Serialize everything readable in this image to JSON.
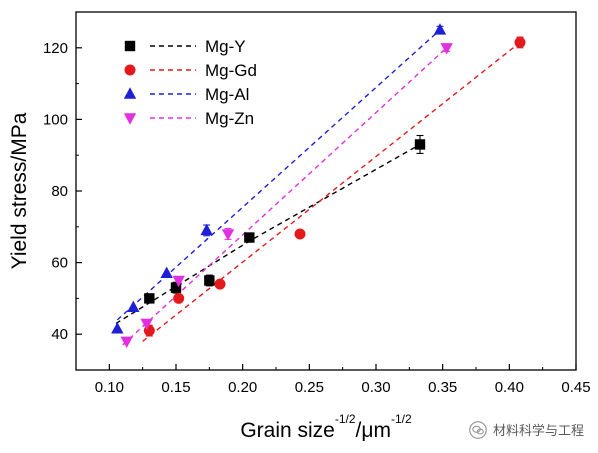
{
  "chart_data": {
    "type": "scatter",
    "xlabel_main": "Grain size",
    "xlabel_exp1": "-1/2",
    "xlabel_unit": "/μm",
    "xlabel_exp2": "-1/2",
    "ylabel": "Yield stress/MPa",
    "xlim": [
      0.075,
      0.45
    ],
    "ylim": [
      30,
      130
    ],
    "xticks": [
      0.1,
      0.15,
      0.2,
      0.25,
      0.3,
      0.35,
      0.4,
      0.45
    ],
    "xtick_labels": [
      "0.10",
      "0.15",
      "0.20",
      "0.25",
      "0.30",
      "0.35",
      "0.40",
      "0.45"
    ],
    "yticks": [
      40,
      60,
      80,
      100,
      120
    ],
    "ytick_labels": [
      "40",
      "60",
      "80",
      "100",
      "120"
    ],
    "grid": false,
    "legend_position": "top-left",
    "series": [
      {
        "name": "Mg-Y",
        "color": "#000000",
        "marker": "square",
        "x": [
          0.13,
          0.15,
          0.175,
          0.205,
          0.333
        ],
        "y": [
          50,
          53,
          55,
          67,
          93
        ],
        "err": [
          0,
          1.5,
          1.5,
          0,
          2.5
        ],
        "fit": [
          [
            0.105,
            43
          ],
          [
            0.205,
            66
          ],
          [
            0.333,
            93
          ]
        ]
      },
      {
        "name": "Mg-Gd",
        "color": "#e31a1c",
        "marker": "circle",
        "x": [
          0.13,
          0.152,
          0.183,
          0.243,
          0.408
        ],
        "y": [
          41,
          50,
          54,
          68,
          121.5
        ],
        "err": [
          1.5,
          1,
          1,
          0,
          1.5
        ],
        "fit": [
          [
            0.125,
            38
          ],
          [
            0.408,
            121.5
          ]
        ]
      },
      {
        "name": "Mg-Al",
        "color": "#1f1fd6",
        "marker": "triangle-up",
        "x": [
          0.106,
          0.118,
          0.143,
          0.173,
          0.348
        ],
        "y": [
          41.5,
          47.5,
          57,
          69,
          125
        ],
        "err": [
          0,
          0,
          0,
          1.5,
          1
        ],
        "fit": [
          [
            0.106,
            44
          ],
          [
            0.348,
            125
          ]
        ]
      },
      {
        "name": "Mg-Zn",
        "color": "#e030e0",
        "marker": "triangle-down",
        "x": [
          0.113,
          0.128,
          0.152,
          0.189,
          0.353
        ],
        "y": [
          38,
          43,
          55,
          68,
          120
        ],
        "err": [
          0,
          0,
          1,
          1.5,
          1
        ],
        "fit": [
          [
            0.11,
            37
          ],
          [
            0.353,
            120
          ]
        ]
      }
    ]
  },
  "watermark": {
    "text": "材料科学与工程",
    "icon": "wechat-icon"
  }
}
